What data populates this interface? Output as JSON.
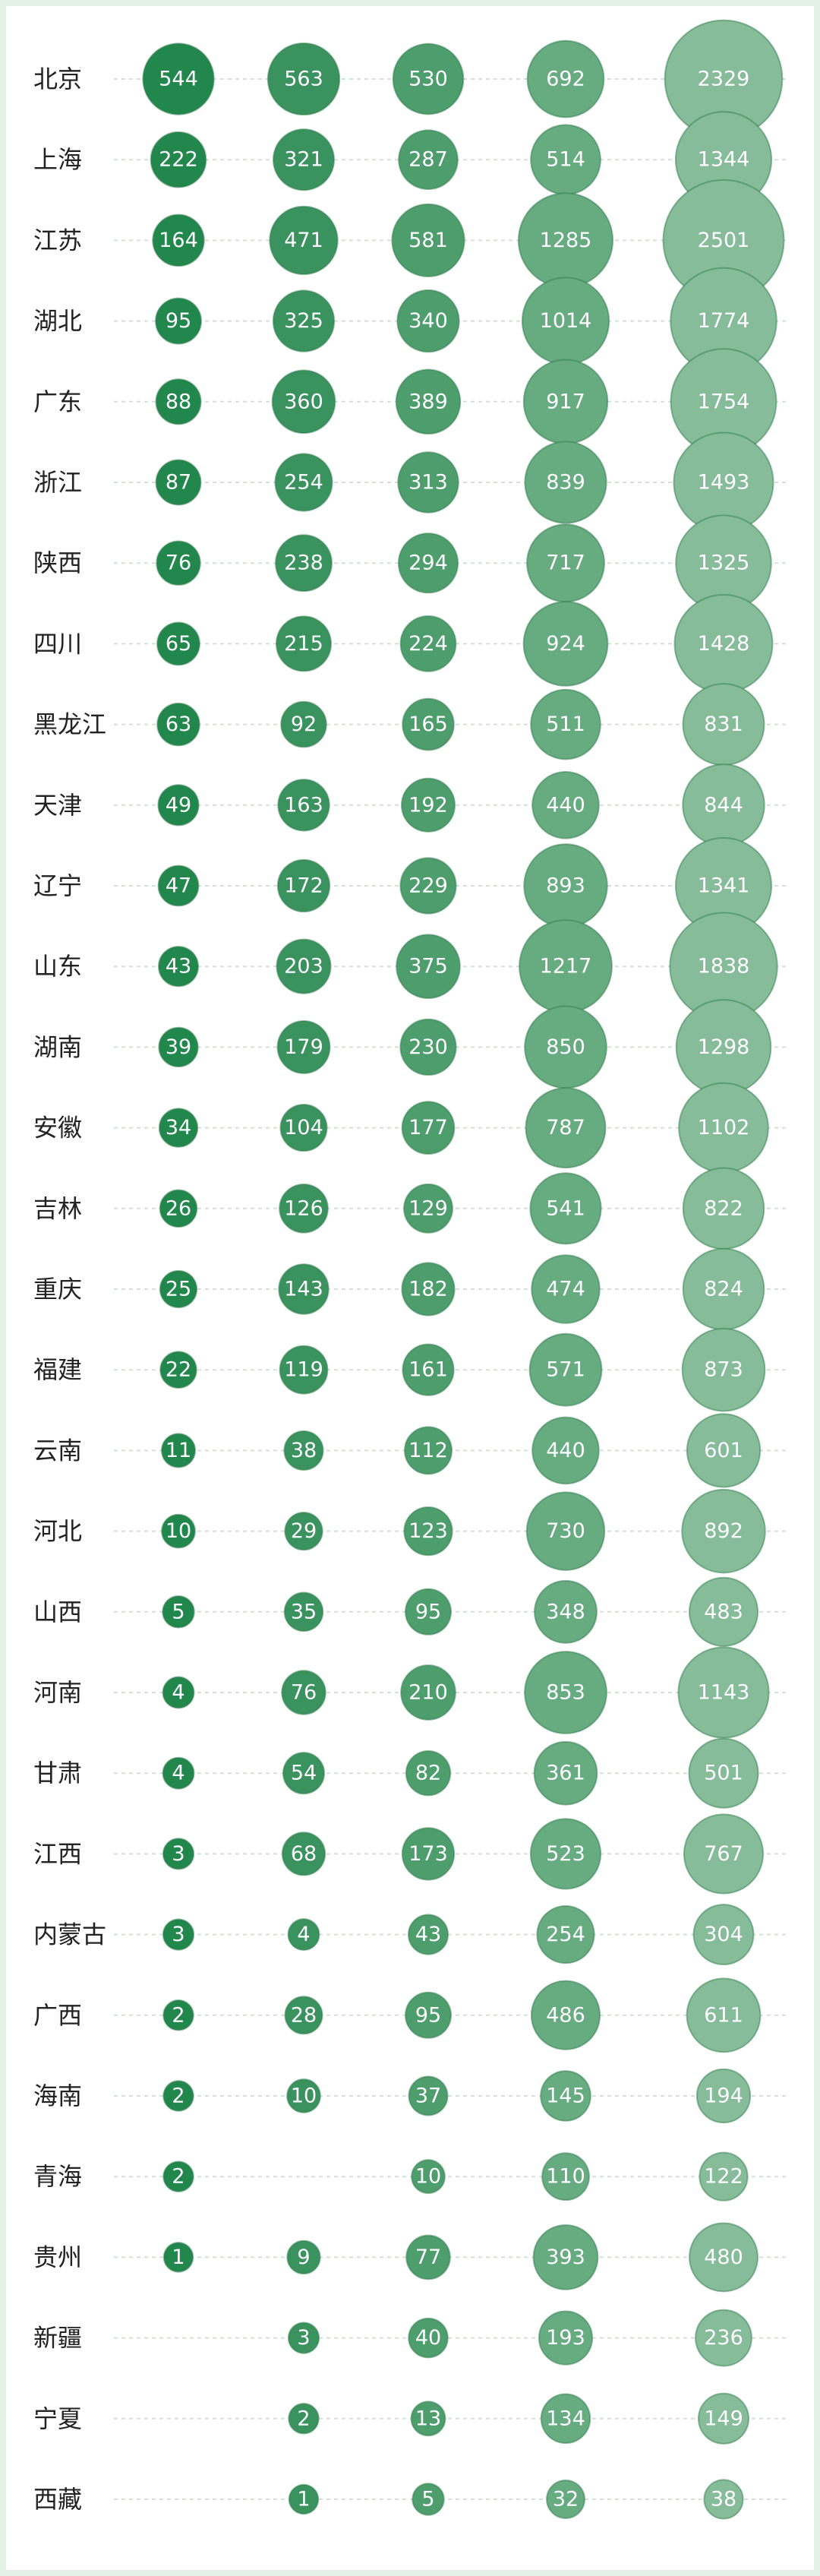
{
  "chart_data": {
    "type": "bubble",
    "categories": [
      "北京",
      "上海",
      "江苏",
      "湖北",
      "广东",
      "浙江",
      "陕西",
      "四川",
      "黑龙江",
      "天津",
      "辽宁",
      "山东",
      "湖南",
      "安徽",
      "吉林",
      "重庆",
      "福建",
      "云南",
      "河北",
      "山西",
      "河南",
      "甘肃",
      "江西",
      "内蒙古",
      "广西",
      "海南",
      "青海",
      "贵州",
      "新疆",
      "宁夏",
      "西藏"
    ],
    "series": [
      {
        "color": "#22874d",
        "values": [
          544,
          222,
          164,
          95,
          88,
          87,
          76,
          65,
          63,
          49,
          47,
          43,
          39,
          34,
          26,
          25,
          22,
          11,
          10,
          5,
          4,
          4,
          3,
          3,
          2,
          2,
          2,
          1,
          null,
          null,
          null
        ]
      },
      {
        "color": "#3a935e",
        "values": [
          563,
          321,
          471,
          325,
          360,
          254,
          238,
          215,
          92,
          163,
          172,
          203,
          179,
          104,
          126,
          143,
          119,
          38,
          29,
          35,
          76,
          54,
          68,
          4,
          28,
          10,
          null,
          9,
          3,
          2,
          1
        ]
      },
      {
        "color": "#4e9d6d",
        "values": [
          530,
          287,
          581,
          340,
          389,
          313,
          294,
          224,
          165,
          192,
          229,
          375,
          230,
          177,
          129,
          182,
          161,
          112,
          123,
          95,
          210,
          82,
          173,
          43,
          95,
          37,
          10,
          77,
          40,
          13,
          5
        ]
      },
      {
        "color": "#67ab81",
        "values": [
          692,
          514,
          1285,
          1014,
          917,
          839,
          717,
          924,
          511,
          440,
          893,
          1217,
          850,
          787,
          541,
          474,
          571,
          440,
          730,
          348,
          853,
          361,
          523,
          254,
          486,
          145,
          110,
          393,
          193,
          134,
          32
        ]
      },
      {
        "color": "#86bc99",
        "values": [
          2329,
          1344,
          2501,
          1774,
          1754,
          1493,
          1325,
          1428,
          831,
          844,
          1341,
          1838,
          1298,
          1102,
          822,
          824,
          873,
          601,
          892,
          483,
          1143,
          501,
          767,
          304,
          611,
          194,
          122,
          480,
          236,
          149,
          38
        ]
      }
    ]
  }
}
